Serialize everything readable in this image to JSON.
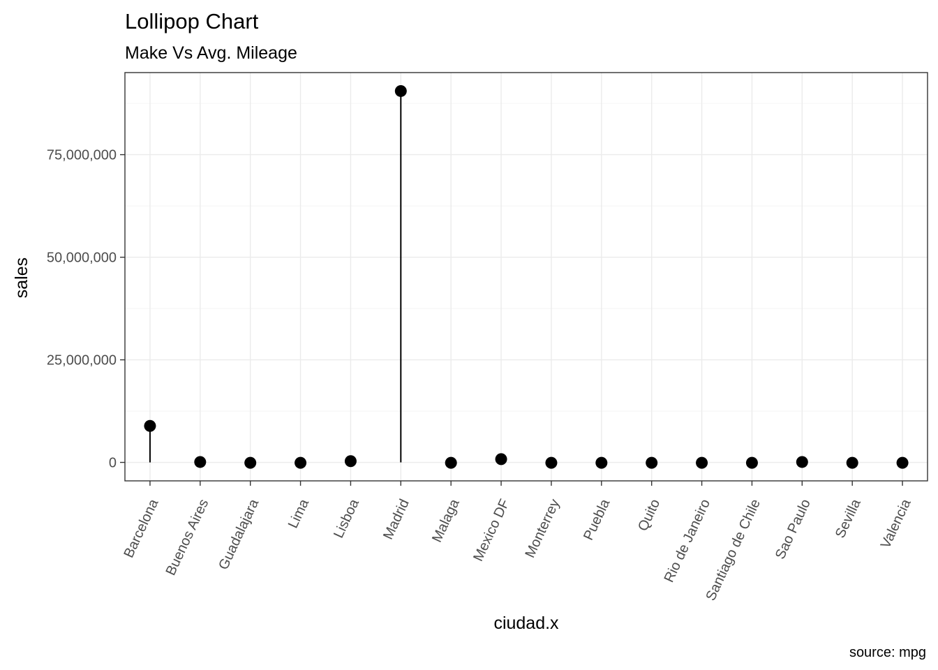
{
  "chart_data": {
    "type": "lollipop",
    "title": "Lollipop Chart",
    "subtitle": "Make Vs Avg. Mileage",
    "caption": "source: mpg",
    "xlabel": "ciudad.x",
    "ylabel": "sales",
    "categories": [
      "Barcelona",
      "Buenos Aires",
      "Guadalajara",
      "Lima",
      "Lisboa",
      "Madrid",
      "Malaga",
      "Mexico DF",
      "Monterrey",
      "Puebla",
      "Quito",
      "Rio de Janeiro",
      "Santiago de Chile",
      "Sao Paulo",
      "Sevilla",
      "Valencia"
    ],
    "values": [
      8900000,
      100000,
      -100000,
      -100000,
      300000,
      90500000,
      -100000,
      800000,
      -100000,
      -100000,
      -100000,
      -100000,
      -100000,
      100000,
      -100000,
      -100000
    ],
    "ylim": [
      -4500000,
      95000000
    ],
    "yticks": [
      0,
      25000000,
      50000000,
      75000000
    ],
    "ytick_labels": [
      "0",
      "25,000,000",
      "50,000,000",
      "75,000,000"
    ],
    "grid": true,
    "colors": {
      "point": "#000000",
      "stem": "#000000",
      "grid": "#ebebeb",
      "border": "#333333"
    }
  }
}
